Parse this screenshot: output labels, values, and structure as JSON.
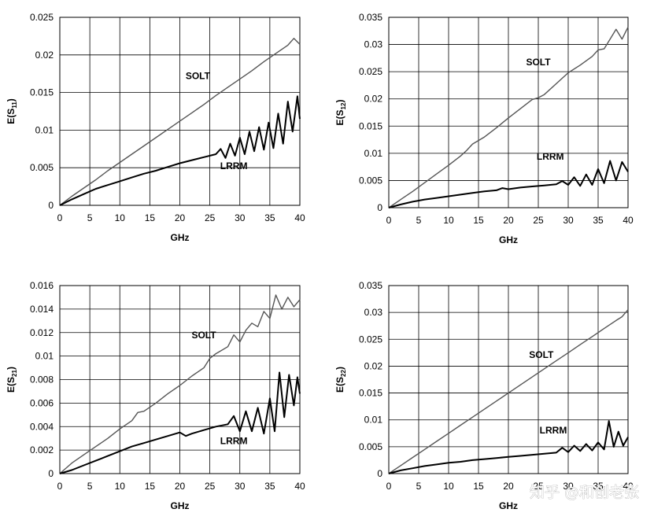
{
  "watermark": "知乎 @和创老张",
  "chart_data": [
    {
      "type": "line",
      "xlabel": "GHz",
      "ylabel": "E(S11)",
      "ylabel_sub": "11",
      "xlim": [
        0,
        40
      ],
      "ylim": [
        0,
        0.025
      ],
      "xticks": [
        0,
        5,
        10,
        15,
        20,
        25,
        30,
        35,
        40
      ],
      "yticks": [
        0,
        0.005,
        0.01,
        0.015,
        0.02,
        0.025
      ],
      "ytick_labels": [
        "0",
        "0.005",
        "0.01",
        "0.015",
        "0.02",
        "0.025"
      ],
      "grid": true,
      "annotations": [
        {
          "text": "SOLT",
          "x": 23,
          "y": 0.0168
        },
        {
          "text": "LRRM",
          "x": 29,
          "y": 0.0048
        }
      ],
      "series": [
        {
          "name": "SOLT",
          "color": "#555555",
          "x": [
            0,
            2,
            4,
            6,
            8,
            10,
            12,
            14,
            16,
            18,
            20,
            22,
            24,
            26,
            28,
            30,
            32,
            34,
            36,
            38,
            39,
            40
          ],
          "y": [
            0,
            0.0012,
            0.0023,
            0.0034,
            0.0046,
            0.0057,
            0.0068,
            0.0079,
            0.009,
            0.0101,
            0.0112,
            0.0123,
            0.0134,
            0.0146,
            0.0157,
            0.0168,
            0.0179,
            0.0191,
            0.0202,
            0.0213,
            0.0222,
            0.0214
          ]
        },
        {
          "name": "LRRM",
          "color": "#000000",
          "x": [
            0,
            2,
            4,
            6,
            8,
            10,
            12,
            14,
            16,
            18,
            20,
            22,
            24,
            26,
            26.8,
            27.6,
            28.4,
            29.2,
            30,
            30.8,
            31.6,
            32.4,
            33.2,
            34,
            34.8,
            35.6,
            36.4,
            37.2,
            38,
            38.8,
            39.6,
            40
          ],
          "y": [
            0,
            0.0008,
            0.0015,
            0.0022,
            0.0027,
            0.0032,
            0.0037,
            0.0042,
            0.0046,
            0.0051,
            0.0056,
            0.006,
            0.0064,
            0.0068,
            0.0075,
            0.0063,
            0.0082,
            0.0066,
            0.009,
            0.0068,
            0.0098,
            0.0072,
            0.0104,
            0.0074,
            0.011,
            0.0076,
            0.0122,
            0.0082,
            0.0138,
            0.0098,
            0.0145,
            0.0115
          ]
        }
      ]
    },
    {
      "type": "line",
      "xlabel": "GHz",
      "ylabel": "E(S12)",
      "ylabel_sub": "12",
      "xlim": [
        0,
        40
      ],
      "ylim": [
        0,
        0.035
      ],
      "xticks": [
        0,
        5,
        10,
        15,
        20,
        25,
        30,
        35,
        40
      ],
      "yticks": [
        0,
        0.005,
        0.01,
        0.015,
        0.02,
        0.025,
        0.03,
        0.035
      ],
      "ytick_labels": [
        "0",
        "0.005",
        "0.01",
        "0.015",
        "0.02",
        "0.025",
        "0.03",
        "0.035"
      ],
      "grid": true,
      "annotations": [
        {
          "text": "SOLT",
          "x": 25,
          "y": 0.0262
        },
        {
          "text": "LRRM",
          "x": 27,
          "y": 0.0088
        }
      ],
      "series": [
        {
          "name": "SOLT",
          "color": "#555555",
          "x": [
            0,
            2,
            4,
            6,
            8,
            10,
            12,
            13,
            14,
            16,
            18,
            20,
            22,
            24,
            25,
            26,
            28,
            30,
            32,
            34,
            35,
            36,
            37,
            38,
            39,
            40
          ],
          "y": [
            0,
            0.0015,
            0.003,
            0.0046,
            0.0062,
            0.0078,
            0.0095,
            0.0105,
            0.0117,
            0.013,
            0.0147,
            0.0165,
            0.0182,
            0.0199,
            0.0202,
            0.0208,
            0.0228,
            0.0248,
            0.0262,
            0.0278,
            0.029,
            0.0292,
            0.031,
            0.0328,
            0.031,
            0.0332
          ]
        },
        {
          "name": "LRRM",
          "color": "#000000",
          "x": [
            0,
            2,
            4,
            6,
            8,
            10,
            12,
            14,
            16,
            18,
            19,
            20,
            22,
            24,
            26,
            28,
            29,
            30,
            31,
            32,
            33,
            34,
            35,
            36,
            37,
            38,
            39,
            40
          ],
          "y": [
            0,
            0.0006,
            0.0011,
            0.0015,
            0.0018,
            0.0021,
            0.0024,
            0.0027,
            0.003,
            0.0032,
            0.0036,
            0.0034,
            0.0037,
            0.0039,
            0.0041,
            0.0043,
            0.0049,
            0.0042,
            0.0056,
            0.004,
            0.0061,
            0.0042,
            0.0071,
            0.0045,
            0.0086,
            0.005,
            0.0084,
            0.0066
          ]
        }
      ]
    },
    {
      "type": "line",
      "xlabel": "GHz",
      "ylabel": "E(S21)",
      "ylabel_sub": "21",
      "xlim": [
        0,
        40
      ],
      "ylim": [
        0,
        0.016
      ],
      "xticks": [
        0,
        5,
        10,
        15,
        20,
        25,
        30,
        35,
        40
      ],
      "yticks": [
        0,
        0.002,
        0.004,
        0.006,
        0.008,
        0.01,
        0.012,
        0.014,
        0.016
      ],
      "ytick_labels": [
        "0",
        "0.002",
        "0.004",
        "0.006",
        "0.008",
        "0.01",
        "0.012",
        "0.014",
        "0.016"
      ],
      "grid": true,
      "annotations": [
        {
          "text": "SOLT",
          "x": 24,
          "y": 0.0115
        },
        {
          "text": "LRRM",
          "x": 29,
          "y": 0.0025
        }
      ],
      "series": [
        {
          "name": "SOLT",
          "color": "#555555",
          "x": [
            0,
            2,
            4,
            6,
            8,
            10,
            12,
            13,
            14,
            16,
            18,
            20,
            22,
            24,
            25,
            26,
            28,
            29,
            30,
            31,
            32,
            33,
            34,
            35,
            36,
            37,
            38,
            39,
            40
          ],
          "y": [
            0,
            0.0009,
            0.0016,
            0.0023,
            0.003,
            0.0038,
            0.0045,
            0.0052,
            0.0053,
            0.006,
            0.0068,
            0.0075,
            0.0083,
            0.009,
            0.0098,
            0.0102,
            0.0108,
            0.0118,
            0.0112,
            0.0122,
            0.0128,
            0.0125,
            0.0138,
            0.0132,
            0.0152,
            0.014,
            0.015,
            0.0142,
            0.0148
          ]
        },
        {
          "name": "LRRM",
          "color": "#000000",
          "x": [
            0,
            2,
            4,
            6,
            8,
            10,
            12,
            14,
            16,
            18,
            20,
            21,
            22,
            24,
            26,
            28,
            29,
            30,
            31,
            32,
            33,
            34,
            35,
            35.8,
            36.6,
            37.4,
            38.2,
            39,
            39.6,
            40
          ],
          "y": [
            0,
            0.0003,
            0.0007,
            0.0011,
            0.0015,
            0.0019,
            0.0023,
            0.0026,
            0.0029,
            0.0032,
            0.0035,
            0.0032,
            0.0034,
            0.0037,
            0.004,
            0.0042,
            0.0049,
            0.0036,
            0.0053,
            0.0036,
            0.0056,
            0.0034,
            0.0064,
            0.0036,
            0.0086,
            0.0048,
            0.0084,
            0.0058,
            0.0082,
            0.0068
          ]
        }
      ]
    },
    {
      "type": "line",
      "xlabel": "GHz",
      "ylabel": "E(S22)",
      "ylabel_sub": "22",
      "xlim": [
        0,
        40
      ],
      "ylim": [
        0,
        0.035
      ],
      "xticks": [
        0,
        5,
        10,
        15,
        20,
        25,
        30,
        35,
        40
      ],
      "yticks": [
        0,
        0.005,
        0.01,
        0.015,
        0.02,
        0.025,
        0.03,
        0.035
      ],
      "ytick_labels": [
        "0",
        "0.005",
        "0.01",
        "0.015",
        "0.02",
        "0.025",
        "0.03",
        "0.035"
      ],
      "grid": true,
      "annotations": [
        {
          "text": "SOLT",
          "x": 25.5,
          "y": 0.0215
        },
        {
          "text": "LRRM",
          "x": 27.5,
          "y": 0.0075
        }
      ],
      "series": [
        {
          "name": "SOLT",
          "color": "#555555",
          "x": [
            0,
            2,
            4,
            6,
            8,
            10,
            12,
            14,
            16,
            18,
            20,
            22,
            24,
            26,
            28,
            30,
            32,
            34,
            36,
            38,
            39,
            40
          ],
          "y": [
            0,
            0.0015,
            0.003,
            0.0045,
            0.006,
            0.0075,
            0.009,
            0.0105,
            0.012,
            0.0135,
            0.015,
            0.0165,
            0.018,
            0.0195,
            0.021,
            0.0225,
            0.024,
            0.0255,
            0.027,
            0.0285,
            0.0292,
            0.0305
          ]
        },
        {
          "name": "LRRM",
          "color": "#000000",
          "x": [
            0,
            2,
            4,
            6,
            8,
            10,
            12,
            14,
            16,
            18,
            20,
            22,
            24,
            26,
            28,
            29,
            30,
            31,
            32,
            33,
            34,
            35,
            36,
            36.8,
            37.6,
            38.4,
            39.2,
            40
          ],
          "y": [
            0,
            0.0006,
            0.001,
            0.0014,
            0.0017,
            0.002,
            0.0022,
            0.0025,
            0.0027,
            0.0029,
            0.0031,
            0.0033,
            0.0035,
            0.0037,
            0.0039,
            0.0048,
            0.004,
            0.0052,
            0.0042,
            0.0055,
            0.0043,
            0.0058,
            0.0045,
            0.0098,
            0.005,
            0.0078,
            0.0052,
            0.0068
          ]
        }
      ]
    }
  ]
}
